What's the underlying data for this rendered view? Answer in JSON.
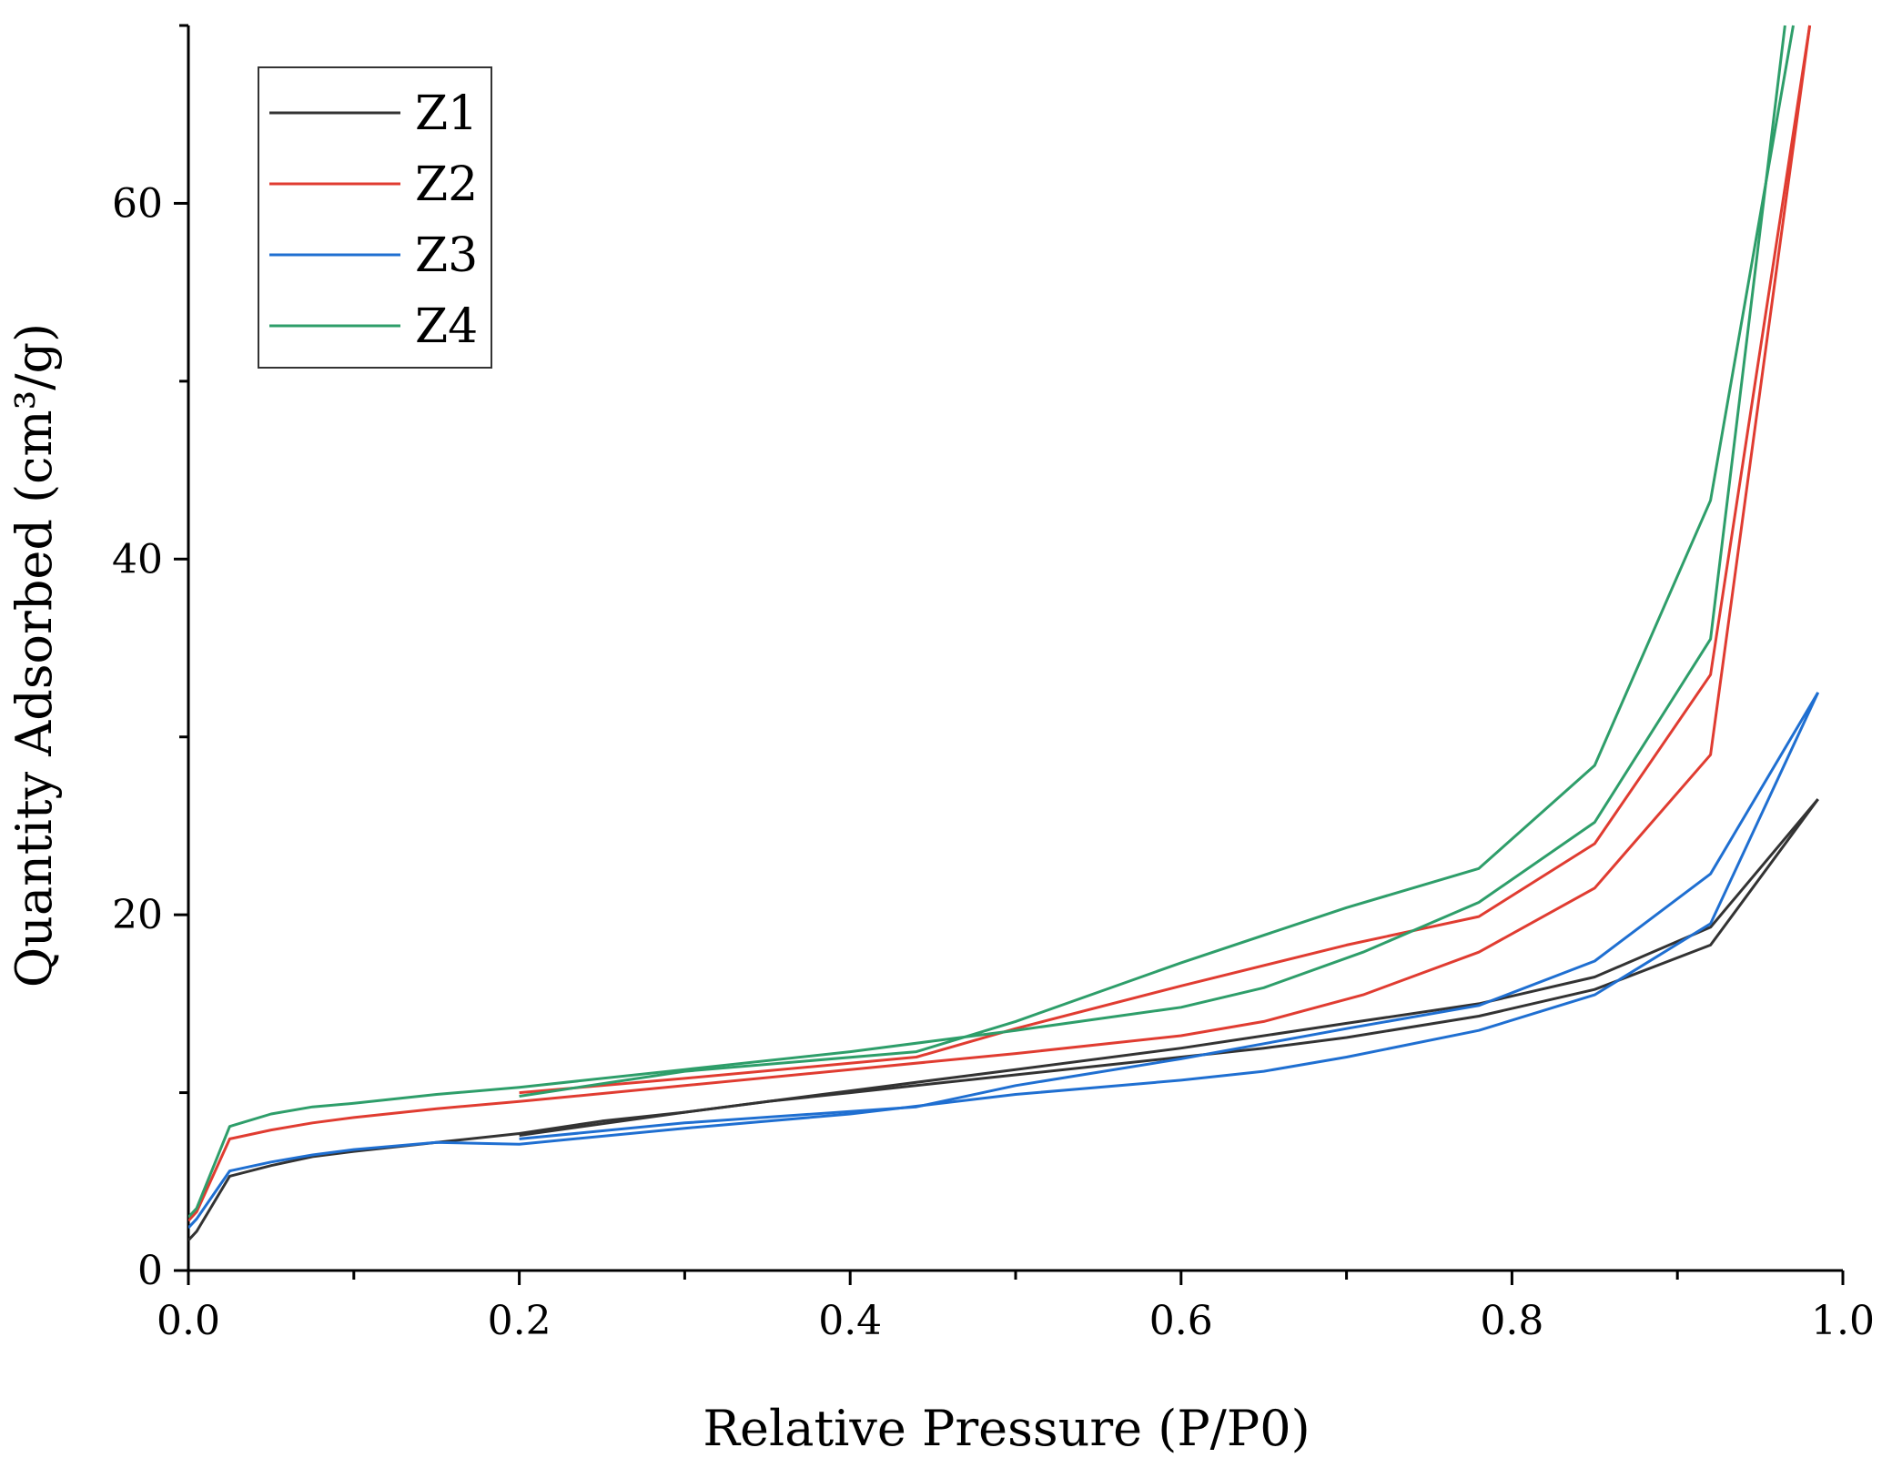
{
  "chart_data": {
    "type": "line",
    "xlabel": "Relative Pressure (P/P0)",
    "ylabel": "Quantity Adsorbed (cm³/g)",
    "xlim": [
      0.0,
      1.0
    ],
    "ylim": [
      0,
      70
    ],
    "xticks": [
      0.0,
      0.2,
      0.4,
      0.6,
      0.8,
      1.0
    ],
    "xtick_labels": [
      "0.0",
      "0.2",
      "0.4",
      "0.6",
      "0.8",
      "1.0"
    ],
    "yticks": [
      0,
      20,
      40,
      60
    ],
    "ytick_labels": [
      "0",
      "20",
      "40",
      "60"
    ],
    "grid": false,
    "legend_position": "top-left",
    "series": [
      {
        "name": "Z1",
        "color": "#333333",
        "adsorption": [
          [
            0.0,
            1.7
          ],
          [
            0.005,
            2.2
          ],
          [
            0.025,
            5.3
          ],
          [
            0.05,
            5.9
          ],
          [
            0.075,
            6.4
          ],
          [
            0.1,
            6.7
          ],
          [
            0.15,
            7.2
          ],
          [
            0.2,
            7.7
          ],
          [
            0.25,
            8.4
          ],
          [
            0.3,
            8.9
          ],
          [
            0.35,
            9.5
          ],
          [
            0.4,
            10.0
          ],
          [
            0.45,
            10.5
          ],
          [
            0.5,
            11.0
          ],
          [
            0.55,
            11.5
          ],
          [
            0.6,
            12.0
          ],
          [
            0.65,
            12.5
          ],
          [
            0.7,
            13.1
          ],
          [
            0.78,
            14.3
          ],
          [
            0.85,
            15.8
          ],
          [
            0.92,
            18.3
          ],
          [
            0.985,
            26.5
          ]
        ],
        "desorption": [
          [
            0.985,
            26.5
          ],
          [
            0.92,
            19.3
          ],
          [
            0.85,
            16.5
          ],
          [
            0.78,
            15.0
          ],
          [
            0.7,
            13.9
          ],
          [
            0.6,
            12.5
          ],
          [
            0.5,
            11.3
          ],
          [
            0.4,
            10.1
          ],
          [
            0.3,
            8.9
          ],
          [
            0.2,
            7.6
          ]
        ]
      },
      {
        "name": "Z2",
        "color": "#e03c31",
        "adsorption": [
          [
            0.0,
            2.8
          ],
          [
            0.005,
            3.3
          ],
          [
            0.025,
            7.4
          ],
          [
            0.05,
            7.9
          ],
          [
            0.075,
            8.3
          ],
          [
            0.1,
            8.6
          ],
          [
            0.15,
            9.1
          ],
          [
            0.2,
            9.5
          ],
          [
            0.3,
            10.4
          ],
          [
            0.4,
            11.3
          ],
          [
            0.5,
            12.2
          ],
          [
            0.6,
            13.2
          ],
          [
            0.65,
            14.0
          ],
          [
            0.71,
            15.5
          ],
          [
            0.78,
            17.9
          ],
          [
            0.85,
            21.5
          ],
          [
            0.92,
            29.0
          ],
          [
            0.98,
            70.0
          ]
        ],
        "desorption": [
          [
            0.98,
            70.0
          ],
          [
            0.92,
            33.5
          ],
          [
            0.85,
            24.0
          ],
          [
            0.78,
            19.9
          ],
          [
            0.7,
            18.3
          ],
          [
            0.6,
            16.0
          ],
          [
            0.5,
            13.6
          ],
          [
            0.44,
            12.0
          ],
          [
            0.3,
            10.8
          ],
          [
            0.2,
            10.0
          ]
        ]
      },
      {
        "name": "Z3",
        "color": "#1f6fd1",
        "adsorption": [
          [
            0.0,
            2.4
          ],
          [
            0.005,
            2.9
          ],
          [
            0.025,
            5.6
          ],
          [
            0.05,
            6.1
          ],
          [
            0.075,
            6.5
          ],
          [
            0.1,
            6.8
          ],
          [
            0.15,
            7.2
          ],
          [
            0.2,
            7.1
          ],
          [
            0.3,
            8.0
          ],
          [
            0.4,
            8.8
          ],
          [
            0.5,
            9.9
          ],
          [
            0.6,
            10.7
          ],
          [
            0.65,
            11.2
          ],
          [
            0.7,
            12.0
          ],
          [
            0.78,
            13.5
          ],
          [
            0.85,
            15.5
          ],
          [
            0.92,
            19.5
          ],
          [
            0.985,
            32.5
          ]
        ],
        "desorption": [
          [
            0.985,
            32.5
          ],
          [
            0.92,
            22.3
          ],
          [
            0.85,
            17.4
          ],
          [
            0.78,
            14.9
          ],
          [
            0.7,
            13.6
          ],
          [
            0.6,
            11.9
          ],
          [
            0.5,
            10.4
          ],
          [
            0.44,
            9.2
          ],
          [
            0.3,
            8.3
          ],
          [
            0.2,
            7.4
          ]
        ]
      },
      {
        "name": "Z4",
        "color": "#2e9e6a",
        "adsorption": [
          [
            0.0,
            3.0
          ],
          [
            0.005,
            3.5
          ],
          [
            0.025,
            8.1
          ],
          [
            0.05,
            8.8
          ],
          [
            0.075,
            9.2
          ],
          [
            0.1,
            9.4
          ],
          [
            0.15,
            9.9
          ],
          [
            0.2,
            10.3
          ],
          [
            0.3,
            11.3
          ],
          [
            0.4,
            12.3
          ],
          [
            0.45,
            12.9
          ],
          [
            0.5,
            13.5
          ],
          [
            0.6,
            14.8
          ],
          [
            0.65,
            15.9
          ],
          [
            0.71,
            17.9
          ],
          [
            0.78,
            20.7
          ],
          [
            0.85,
            25.2
          ],
          [
            0.92,
            35.5
          ],
          [
            0.965,
            70.0
          ]
        ],
        "desorption": [
          [
            0.97,
            70.0
          ],
          [
            0.92,
            43.3
          ],
          [
            0.85,
            28.4
          ],
          [
            0.78,
            22.6
          ],
          [
            0.7,
            20.4
          ],
          [
            0.6,
            17.3
          ],
          [
            0.5,
            14.0
          ],
          [
            0.44,
            12.3
          ],
          [
            0.3,
            11.2
          ],
          [
            0.2,
            9.8
          ]
        ]
      }
    ]
  }
}
